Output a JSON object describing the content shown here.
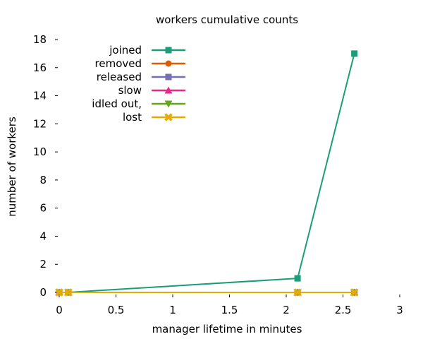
{
  "chart_data": {
    "type": "line",
    "title": "workers cumulative counts",
    "xlabel": "manager lifetime in minutes",
    "ylabel": "number of workers",
    "xlim": [
      0,
      3
    ],
    "ylim": [
      0,
      18
    ],
    "x_ticks": [
      0,
      0.5,
      1,
      1.5,
      2,
      2.5,
      3
    ],
    "y_ticks": [
      0,
      2,
      4,
      6,
      8,
      10,
      12,
      14,
      16,
      18
    ],
    "grid": false,
    "legend_position": "top-left",
    "series": [
      {
        "name": "joined",
        "color": "#1b9e77",
        "marker": "square",
        "x": [
          0,
          0.08,
          2.1,
          2.6
        ],
        "y": [
          0,
          0,
          1,
          17
        ]
      },
      {
        "name": "removed",
        "color": "#d95f02",
        "marker": "circle",
        "x": [
          0,
          0.08,
          2.1,
          2.6
        ],
        "y": [
          0,
          0,
          0,
          0
        ]
      },
      {
        "name": "released",
        "color": "#7570b3",
        "marker": "square",
        "x": [
          0,
          0.08,
          2.1,
          2.6
        ],
        "y": [
          0,
          0,
          0,
          0
        ]
      },
      {
        "name": "slow",
        "color": "#e7298a",
        "marker": "triangle-up",
        "x": [
          0,
          0.08,
          2.1,
          2.6
        ],
        "y": [
          0,
          0,
          0,
          0
        ]
      },
      {
        "name": "idled out,",
        "color": "#66a61e",
        "marker": "triangle-down",
        "x": [
          0,
          0.08,
          2.1,
          2.6
        ],
        "y": [
          0,
          0,
          0,
          0
        ]
      },
      {
        "name": "lost",
        "color": "#e6ab02",
        "marker": "cross",
        "x": [
          0,
          0.08,
          2.1,
          2.6
        ],
        "y": [
          0,
          0,
          0,
          0
        ]
      }
    ]
  }
}
